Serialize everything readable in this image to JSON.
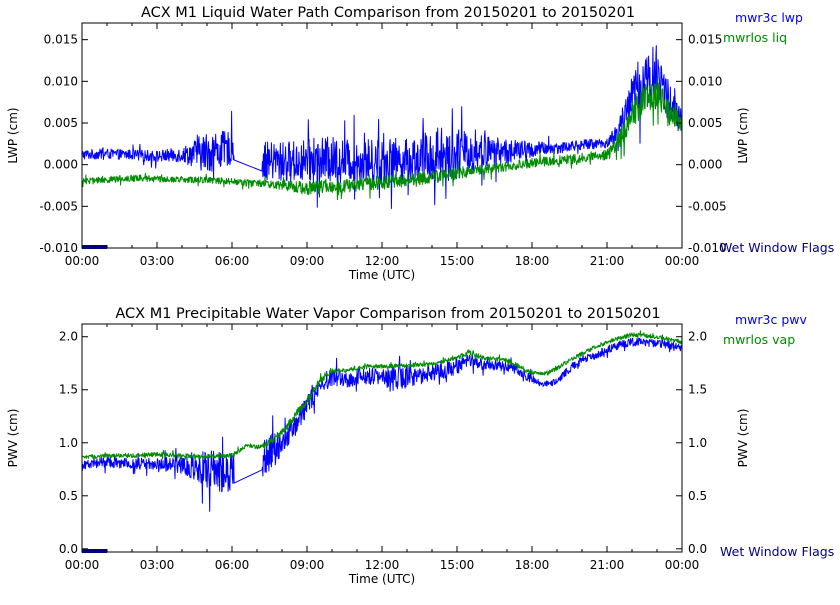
{
  "chart_data": [
    {
      "type": "line",
      "title": "ACX M1 Liquid Water Path Comparison from 20150201 to 20150201",
      "xlabel": "Time (UTC)",
      "ylabel": "LWP (cm)",
      "ylabel_right": "LWP (cm)",
      "xlim": [
        0,
        24
      ],
      "ylim": [
        -0.01,
        0.017
      ],
      "x_ticks": [
        "00:00",
        "03:00",
        "06:00",
        "09:00",
        "12:00",
        "15:00",
        "18:00",
        "21:00",
        "00:00"
      ],
      "y_ticks": [
        -0.01,
        -0.005,
        0.0,
        0.005,
        0.01,
        0.015
      ],
      "y_tick_labels": [
        "-0.010",
        "-0.005",
        "0.000",
        "0.005",
        "0.010",
        "0.015"
      ],
      "legend_position": "top-right, outside plot",
      "flag_label": "Wet Window Flags",
      "flag_segments": [
        [
          0.0,
          1.0
        ]
      ],
      "series": [
        {
          "name": "mwr3c lwp",
          "color": "#0000ff",
          "x": [
            0.0,
            1.0,
            2.0,
            3.0,
            4.0,
            5.0,
            6.0,
            7.2,
            8.0,
            9.0,
            10.0,
            11.0,
            12.0,
            13.0,
            14.0,
            15.0,
            16.0,
            17.0,
            18.0,
            19.0,
            20.0,
            21.0,
            21.5,
            22.0,
            22.5,
            23.0,
            23.5,
            24.0
          ],
          "values": [
            0.0012,
            0.0013,
            0.0012,
            0.001,
            0.0012,
            0.0015,
            0.002,
            0.0005,
            0.0003,
            0.0005,
            0.0006,
            0.0004,
            0.0005,
            0.0006,
            0.001,
            0.0012,
            0.0016,
            0.0016,
            0.0018,
            0.002,
            0.0024,
            0.0026,
            0.004,
            0.0085,
            0.01,
            0.011,
            0.0075,
            0.005
          ],
          "noise": [
            0.0006,
            0.0006,
            0.0006,
            0.0007,
            0.0009,
            0.0025,
            0.002,
            0.0022,
            0.0025,
            0.0025,
            0.0028,
            0.0025,
            0.0028,
            0.0025,
            0.0032,
            0.003,
            0.002,
            0.0015,
            0.001,
            0.0007,
            0.0006,
            0.0006,
            0.0015,
            0.003,
            0.0035,
            0.0035,
            0.0025,
            0.0015
          ],
          "gaps": [
            [
              6.1,
              7.2
            ]
          ]
        },
        {
          "name": "mwrlos liq",
          "color": "#008c00",
          "x": [
            0.0,
            1.0,
            2.0,
            3.0,
            4.0,
            5.0,
            6.0,
            7.0,
            8.0,
            9.0,
            10.0,
            11.0,
            12.0,
            13.0,
            14.0,
            15.0,
            16.0,
            17.0,
            18.0,
            19.0,
            20.0,
            21.0,
            21.5,
            22.0,
            22.5,
            23.0,
            23.5,
            24.0
          ],
          "values": [
            -0.002,
            -0.0018,
            -0.0016,
            -0.0017,
            -0.0018,
            -0.0018,
            -0.002,
            -0.0022,
            -0.0025,
            -0.0028,
            -0.0026,
            -0.0025,
            -0.0022,
            -0.0018,
            -0.0015,
            -0.001,
            -0.0006,
            -0.0002,
            0.0002,
            0.0005,
            0.0008,
            0.0012,
            0.003,
            0.006,
            0.008,
            0.0085,
            0.0065,
            0.005
          ],
          "noise": [
            0.0004,
            0.0004,
            0.0004,
            0.0004,
            0.0004,
            0.0004,
            0.0004,
            0.0004,
            0.0005,
            0.0008,
            0.0008,
            0.0008,
            0.0008,
            0.0008,
            0.0008,
            0.0008,
            0.0006,
            0.0006,
            0.0006,
            0.0006,
            0.0006,
            0.0006,
            0.0012,
            0.002,
            0.002,
            0.002,
            0.0015,
            0.001
          ]
        }
      ]
    },
    {
      "type": "line",
      "title": "ACX M1 Precipitable Water Vapor Comparison from 20150201 to 20150201",
      "xlabel": "Time (UTC)",
      "ylabel": "PWV (cm)",
      "ylabel_right": "PWV (cm)",
      "xlim": [
        0,
        24
      ],
      "ylim": [
        -0.03,
        2.12
      ],
      "x_ticks": [
        "00:00",
        "03:00",
        "06:00",
        "09:00",
        "12:00",
        "15:00",
        "18:00",
        "21:00",
        "00:00"
      ],
      "y_ticks": [
        0.0,
        0.5,
        1.0,
        1.5,
        2.0
      ],
      "y_tick_labels": [
        "0.0",
        "0.5",
        "1.0",
        "1.5",
        "2.0"
      ],
      "legend_position": "top-right, outside plot",
      "flag_label": "Wet Window Flags",
      "flag_segments": [
        [
          0.0,
          1.0
        ]
      ],
      "series": [
        {
          "name": "mwr3c pwv",
          "color": "#0000ff",
          "x": [
            0.0,
            1.0,
            2.0,
            3.0,
            4.0,
            5.0,
            6.0,
            7.2,
            8.0,
            8.5,
            9.0,
            9.5,
            10.0,
            10.5,
            11.0,
            11.5,
            12.0,
            12.5,
            13.0,
            14.0,
            15.0,
            15.5,
            16.0,
            17.0,
            17.5,
            18.0,
            18.5,
            19.0,
            19.5,
            20.0,
            20.5,
            21.0,
            21.5,
            22.0,
            23.0,
            24.0
          ],
          "values": [
            0.8,
            0.82,
            0.8,
            0.8,
            0.79,
            0.76,
            0.7,
            0.85,
            1.0,
            1.15,
            1.35,
            1.52,
            1.62,
            1.6,
            1.62,
            1.63,
            1.62,
            1.6,
            1.62,
            1.66,
            1.72,
            1.78,
            1.74,
            1.72,
            1.68,
            1.6,
            1.55,
            1.58,
            1.7,
            1.78,
            1.82,
            1.88,
            1.92,
            1.95,
            1.94,
            1.9
          ],
          "noise": [
            0.05,
            0.05,
            0.05,
            0.06,
            0.08,
            0.18,
            0.2,
            0.2,
            0.12,
            0.1,
            0.1,
            0.08,
            0.08,
            0.1,
            0.08,
            0.08,
            0.08,
            0.15,
            0.1,
            0.08,
            0.08,
            0.06,
            0.05,
            0.05,
            0.05,
            0.04,
            0.03,
            0.03,
            0.04,
            0.04,
            0.04,
            0.04,
            0.04,
            0.04,
            0.04,
            0.04
          ],
          "gaps": [
            [
              6.1,
              7.2
            ]
          ]
        },
        {
          "name": "mwrlos vap",
          "color": "#008c00",
          "x": [
            0.0,
            1.0,
            2.0,
            3.0,
            4.0,
            5.0,
            6.0,
            6.6,
            7.0,
            7.5,
            8.0,
            8.5,
            9.0,
            9.5,
            10.0,
            10.5,
            11.0,
            11.5,
            12.0,
            13.0,
            14.0,
            15.0,
            15.5,
            16.0,
            17.0,
            17.5,
            18.0,
            18.5,
            19.0,
            19.5,
            20.0,
            20.5,
            21.0,
            22.0,
            23.0,
            24.0
          ],
          "values": [
            0.86,
            0.88,
            0.88,
            0.89,
            0.88,
            0.87,
            0.88,
            0.98,
            0.96,
            1.0,
            1.1,
            1.25,
            1.4,
            1.58,
            1.68,
            1.68,
            1.7,
            1.72,
            1.72,
            1.73,
            1.74,
            1.8,
            1.86,
            1.8,
            1.78,
            1.72,
            1.66,
            1.65,
            1.7,
            1.78,
            1.84,
            1.9,
            1.95,
            2.02,
            2.0,
            1.95
          ],
          "noise": [
            0.02,
            0.02,
            0.02,
            0.02,
            0.02,
            0.02,
            0.02,
            0.02,
            0.02,
            0.03,
            0.03,
            0.04,
            0.04,
            0.03,
            0.02,
            0.02,
            0.02,
            0.02,
            0.02,
            0.02,
            0.02,
            0.02,
            0.03,
            0.02,
            0.02,
            0.02,
            0.02,
            0.02,
            0.02,
            0.02,
            0.02,
            0.02,
            0.02,
            0.02,
            0.02,
            0.02
          ]
        }
      ]
    }
  ]
}
